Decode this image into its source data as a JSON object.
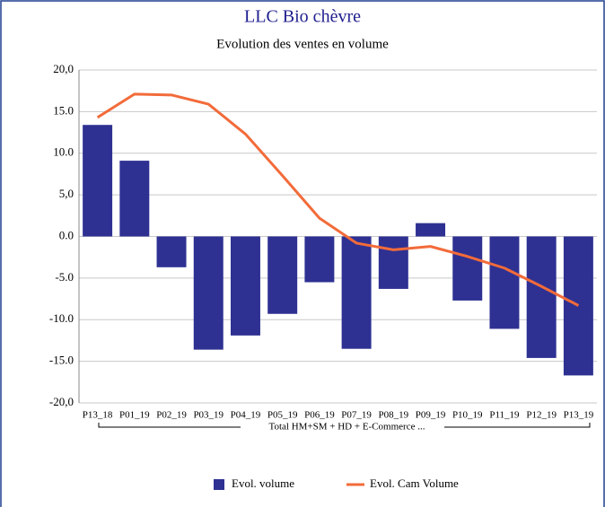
{
  "chart_data": {
    "type": "bar",
    "title": "LLC Bio chèvre",
    "subtitle": "Evolution des ventes en volume",
    "categories": [
      "P13_18",
      "P01_19",
      "P02_19",
      "P03_19",
      "P04_19",
      "P05_19",
      "P06_19",
      "P07_19",
      "P08_19",
      "P09_19",
      "P10_19",
      "P11_19",
      "P12_19",
      "P13_19"
    ],
    "category_group": "Total HM+SM + HD + E-Commerce ...",
    "series": [
      {
        "name": "Evol. volume",
        "type": "bar",
        "color": "#2e3192",
        "values": [
          13.4,
          9.1,
          -3.7,
          -13.6,
          -11.9,
          -9.3,
          -5.5,
          -13.5,
          -6.3,
          1.6,
          -7.7,
          -11.1,
          -14.6,
          -16.7
        ]
      },
      {
        "name": "Evol. Cam Volume",
        "type": "line",
        "color": "#f26b3a",
        "values": [
          14.3,
          17.1,
          17.0,
          15.9,
          12.3,
          7.3,
          2.2,
          -0.8,
          -1.6,
          -1.2,
          -2.4,
          -3.8,
          -6.0,
          -8.3
        ]
      }
    ],
    "ylim": [
      -20,
      20
    ],
    "yticks": [
      {
        "value": 20,
        "label": "20,0"
      },
      {
        "value": 15,
        "label": "15.0"
      },
      {
        "value": 10,
        "label": "10.0"
      },
      {
        "value": 5,
        "label": "5,0"
      },
      {
        "value": 0,
        "label": "0.0"
      },
      {
        "value": -5,
        "label": "-5.0"
      },
      {
        "value": -10,
        "label": "-10.0"
      },
      {
        "value": -15,
        "label": "-15.0"
      },
      {
        "value": -20,
        "label": "-20,0"
      }
    ],
    "grid": true,
    "legend": "bottom"
  }
}
